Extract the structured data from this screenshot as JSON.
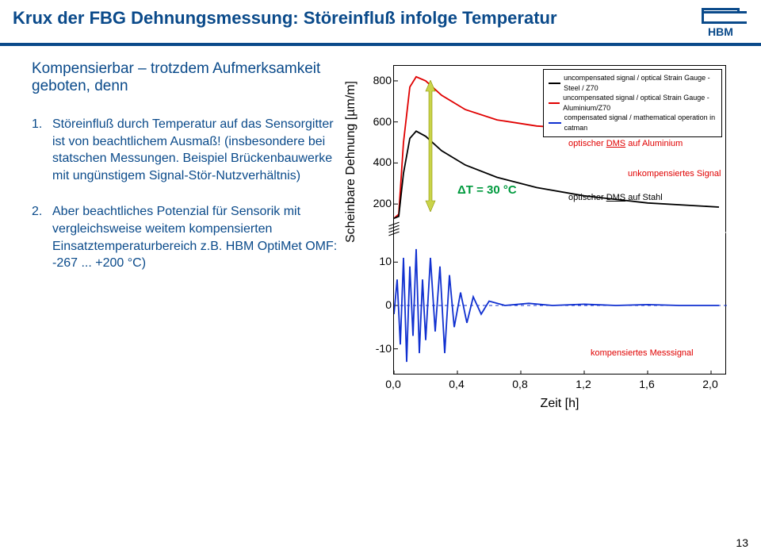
{
  "header": {
    "title": "Krux der FBG Dehnungsmessung: Störeinfluß infolge Temperatur",
    "logo_text": "HBM"
  },
  "subtitle": "Kompensierbar – trotzdem Aufmerksamkeit geboten, denn",
  "points": [
    "Störeinfluß durch Temperatur auf das Sensorgitter ist von beachtlichem Ausmaß! (insbesondere bei statschen Messungen. Beispiel Brückenbauwerke mit ungünstigem Signal-Stör-Nutzverhältnis)",
    "Aber beachtliches Potenzial für Sensorik mit vergleichsweise weitem kompensierten Einsatztemperaturbereich z.B. HBM OptiMet OMF: -267 ... +200 °C)"
  ],
  "chart": {
    "type": "line",
    "ylabel": "Scheinbare Dehnung [µm/m]",
    "xlabel": "Zeit [h]",
    "xlim": [
      0,
      2.1
    ],
    "xtick_step": 0.4,
    "xticks": [
      "0,0",
      "0,4",
      "0,8",
      "1,2",
      "1,6",
      "2,0"
    ],
    "upper_panel": {
      "ylim": [
        100,
        850
      ],
      "yticks": [
        200,
        400,
        600,
        800
      ]
    },
    "lower_panel": {
      "ylim": [
        -15,
        15
      ],
      "yticks": [
        -10,
        0,
        10
      ]
    },
    "axis_break": true,
    "background_color": "#ffffff",
    "frame_color": "#000000",
    "series": [
      {
        "color": "#e00000",
        "panel": "upper",
        "points": [
          [
            0.0,
            130
          ],
          [
            0.03,
            150
          ],
          [
            0.06,
            500
          ],
          [
            0.1,
            770
          ],
          [
            0.14,
            820
          ],
          [
            0.2,
            800
          ],
          [
            0.3,
            730
          ],
          [
            0.45,
            660
          ],
          [
            0.65,
            610
          ],
          [
            0.9,
            580
          ],
          [
            1.2,
            565
          ],
          [
            1.6,
            558
          ],
          [
            2.05,
            555
          ]
        ]
      },
      {
        "color": "#000000",
        "panel": "upper",
        "points": [
          [
            0.0,
            130
          ],
          [
            0.03,
            140
          ],
          [
            0.06,
            350
          ],
          [
            0.1,
            520
          ],
          [
            0.14,
            555
          ],
          [
            0.2,
            530
          ],
          [
            0.3,
            460
          ],
          [
            0.45,
            390
          ],
          [
            0.65,
            330
          ],
          [
            0.9,
            280
          ],
          [
            1.2,
            240
          ],
          [
            1.6,
            205
          ],
          [
            2.05,
            185
          ]
        ]
      },
      {
        "color": "#1030d0",
        "panel": "lower",
        "points": [
          [
            0.0,
            -2
          ],
          [
            0.02,
            6
          ],
          [
            0.04,
            -9
          ],
          [
            0.06,
            11
          ],
          [
            0.08,
            -13
          ],
          [
            0.1,
            9
          ],
          [
            0.12,
            -7
          ],
          [
            0.14,
            13
          ],
          [
            0.16,
            -11
          ],
          [
            0.18,
            6
          ],
          [
            0.2,
            -8
          ],
          [
            0.23,
            11
          ],
          [
            0.26,
            -6
          ],
          [
            0.29,
            9
          ],
          [
            0.32,
            -11
          ],
          [
            0.35,
            7
          ],
          [
            0.38,
            -5
          ],
          [
            0.42,
            3
          ],
          [
            0.46,
            -4
          ],
          [
            0.5,
            2
          ],
          [
            0.55,
            -2
          ],
          [
            0.6,
            1
          ],
          [
            0.7,
            0
          ],
          [
            0.85,
            0.5
          ],
          [
            1.0,
            0
          ],
          [
            1.2,
            0.3
          ],
          [
            1.4,
            0
          ],
          [
            1.6,
            0.2
          ],
          [
            1.8,
            0
          ],
          [
            2.05,
            0
          ]
        ]
      }
    ],
    "dashed_zero_line_color": "#1030d0",
    "legend": {
      "items": [
        {
          "color": "#000000",
          "text": "uncompensated signal / optical Strain Gauge - Steel / Z70"
        },
        {
          "color": "#e00000",
          "text": "uncompensated signal / optical Strain Gauge - Aluminium/Z70"
        },
        {
          "color": "#1030d0",
          "text": "compensated signal / mathematical operation in catman"
        }
      ]
    },
    "annotations": {
      "dms_alu": {
        "text_prefix": "optischer ",
        "text_under": "DMS",
        "text_suffix": " auf Aluminium",
        "color": "#e00000"
      },
      "unkomp": {
        "text": "unkompensiertes Signal",
        "color": "#e00000"
      },
      "dms_steel": {
        "text_prefix": "optischer ",
        "text_under": "DMS",
        "text_suffix": " auf Stahl",
        "color": "#000000"
      },
      "komp": {
        "text": "kompensiertes Messsignal",
        "color": "#e00000"
      },
      "deltaT": "ΔT = 30 °C"
    },
    "arrow_color": "#b7c400"
  },
  "page_number": "13"
}
